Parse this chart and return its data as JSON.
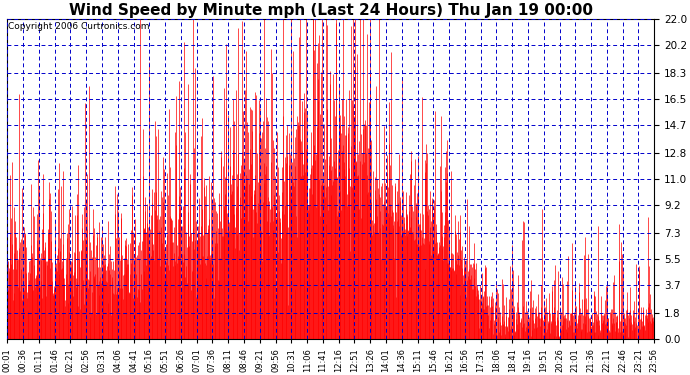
{
  "title": "Wind Speed by Minute mph (Last 24 Hours) Thu Jan 19 00:00",
  "copyright": "Copyright 2006 Curtronics.com",
  "yticks": [
    0.0,
    1.8,
    3.7,
    5.5,
    7.3,
    9.2,
    11.0,
    12.8,
    14.7,
    16.5,
    18.3,
    20.2,
    22.0
  ],
  "ylim": [
    0.0,
    22.0
  ],
  "xtick_labels": [
    "00:01",
    "00:36",
    "01:11",
    "01:46",
    "02:21",
    "02:56",
    "03:31",
    "04:06",
    "04:41",
    "05:16",
    "05:51",
    "06:26",
    "07:01",
    "07:36",
    "08:11",
    "08:46",
    "09:21",
    "09:56",
    "10:31",
    "11:06",
    "11:41",
    "12:16",
    "12:51",
    "13:26",
    "14:01",
    "14:36",
    "15:11",
    "15:46",
    "16:21",
    "16:56",
    "17:31",
    "18:06",
    "18:41",
    "19:16",
    "19:51",
    "20:26",
    "21:01",
    "21:36",
    "22:11",
    "22:46",
    "23:21",
    "23:56"
  ],
  "bg_color": "#ffffff",
  "grid_color": "#0000cc",
  "bar_color": "#ff0000",
  "title_fontsize": 11,
  "copyright_fontsize": 6.5,
  "figsize": [
    6.9,
    3.75
  ],
  "dpi": 100
}
